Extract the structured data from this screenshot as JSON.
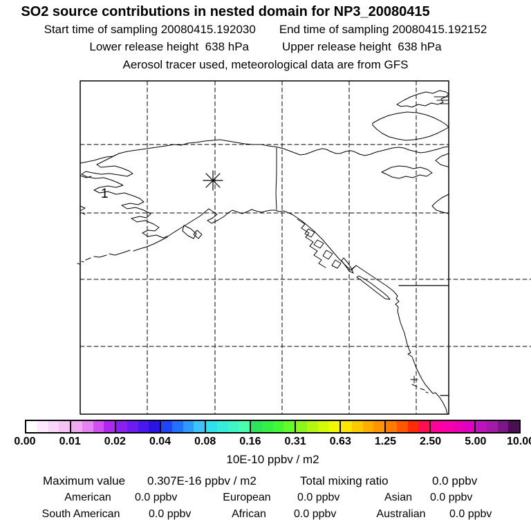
{
  "header": {
    "title": "SO2 source contributions in nested domain for NP3_20080415",
    "start_time": "Start time of sampling 20080415.192030",
    "end_time": "End time of sampling 20080415.192152",
    "lower_release": "Lower release height  638 hPa",
    "upper_release": "Upper release height  638 hPa",
    "tracer_note": "Aerosol tracer used, meteorological data are from GFS"
  },
  "map": {
    "region_label": "1",
    "marker": "release-location-asterisk"
  },
  "colorbar": {
    "ticks": [
      "0.00",
      "0.01",
      "0.02",
      "0.04",
      "0.08",
      "0.16",
      "0.31",
      "0.63",
      "1.25",
      "2.50",
      "5.00",
      "10.00"
    ],
    "unit": "10E-10 ppbv / m2",
    "cells": [
      "#FFFFFF",
      "#FDEBFD",
      "#FAD7FA",
      "#F5C2F5",
      "#F0A8F0",
      "#E683F2",
      "#D150F0",
      "#AD29F0",
      "#8A20F0",
      "#6B1CF0",
      "#4A18EE",
      "#2A14E4",
      "#1E46F6",
      "#2173FF",
      "#2F9BFF",
      "#3FC2FF",
      "#2FE0EF",
      "#35EDD9",
      "#3DF6C4",
      "#49FCAE",
      "#2EE55A",
      "#35EE46",
      "#45F636",
      "#63FA2A",
      "#8CF51E",
      "#B2F712",
      "#D4F908",
      "#F2F800",
      "#FFE400",
      "#FFC900",
      "#FFAE00",
      "#FF9400",
      "#FF7A00",
      "#FF5700",
      "#FF2A08",
      "#FF0E52",
      "#FF009D",
      "#F800AC",
      "#EC00B4",
      "#DE00BE",
      "#BC14BC",
      "#A21AA5",
      "#7D1687",
      "#4A0E52"
    ]
  },
  "stats": {
    "max_label": "Maximum value",
    "max_value": "0.307E-16 ppbv / m2",
    "total_label": "Total mixing ratio",
    "total_value": "0.0 ppbv",
    "regions": [
      {
        "label": "American",
        "value": "0.0 ppbv"
      },
      {
        "label": "European",
        "value": "0.0 ppbv"
      },
      {
        "label": "Asian",
        "value": "0.0 ppbv"
      },
      {
        "label": "South American",
        "value": "0.0 ppbv"
      },
      {
        "label": "African",
        "value": "0.0 ppbv"
      },
      {
        "label": "Australian",
        "value": "0.0 ppbv"
      }
    ]
  },
  "chart_data": {
    "type": "heatmap",
    "title": "SO2 source contributions in nested domain for NP3_20080415",
    "subtitles": [
      "Start time of sampling 20080415.192030    End time of sampling 20080415.192152",
      "Lower release height  638 hPa     Upper release height  638 hPa",
      "Aerosol tracer used, meteorological data are from GFS"
    ],
    "colorbar_scale": {
      "tick_values": [
        0.0,
        0.01,
        0.02,
        0.04,
        0.08,
        0.16,
        0.31,
        0.63,
        1.25,
        2.5,
        5.0,
        10.0
      ],
      "unit": "10E-10 ppbv / m2",
      "scale": "logarithmic (doubling bins)"
    },
    "field_summary": {
      "maximum_value": "0.307E-16 ppbv / m2",
      "total_mixing_ratio": "0.0 ppbv",
      "source_contributions": {
        "American": "0.0 ppbv",
        "European": "0.0 ppbv",
        "Asian": "0.0 ppbv",
        "South American": "0.0 ppbv",
        "African": "0.0 ppbv",
        "Australian": "0.0 ppbv"
      },
      "note": "no colored contribution cells visible on map (field effectively zero)"
    },
    "map_overlay": {
      "release_point_label": "1",
      "release_marker": "asterisk",
      "gridlines": "dashed lat/lon graticule, 5 meridians x 4 parallels inside frame"
    }
  }
}
